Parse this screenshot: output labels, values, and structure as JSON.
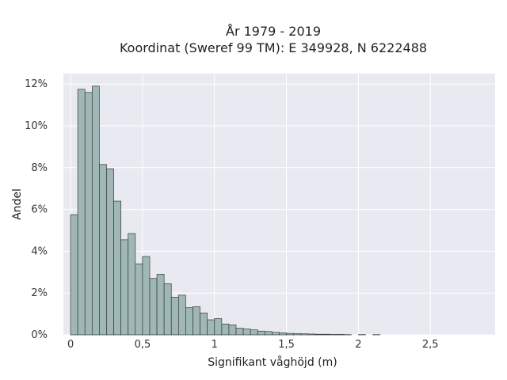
{
  "chart_data": {
    "type": "bar",
    "title_line1": "År 1979 - 2019",
    "title_line2": "Koordinat (Sweref 99 TM): E 349928, N 6222488",
    "xlabel": "Signifikant våghöjd (m)",
    "ylabel": "Andel",
    "xlim": [
      -0.05,
      2.95
    ],
    "ylim": [
      0,
      12.5
    ],
    "x_ticks": [
      {
        "value": 0,
        "label": "0"
      },
      {
        "value": 0.5,
        "label": "0,5"
      },
      {
        "value": 1,
        "label": "1"
      },
      {
        "value": 1.5,
        "label": "1,5"
      },
      {
        "value": 2,
        "label": "2"
      },
      {
        "value": 2.5,
        "label": "2,5"
      }
    ],
    "y_ticks": [
      {
        "value": 0,
        "label": "0%"
      },
      {
        "value": 2,
        "label": "2%"
      },
      {
        "value": 4,
        "label": "4%"
      },
      {
        "value": 6,
        "label": "6%"
      },
      {
        "value": 8,
        "label": "8%"
      },
      {
        "value": 10,
        "label": "10%"
      },
      {
        "value": 12,
        "label": "12%"
      }
    ],
    "bin_width": 0.05,
    "bin_start": 0.0,
    "values": [
      5.75,
      11.75,
      11.6,
      11.9,
      8.15,
      7.95,
      6.4,
      4.55,
      4.85,
      3.4,
      3.75,
      2.7,
      2.9,
      2.45,
      1.8,
      1.9,
      1.3,
      1.35,
      1.05,
      0.72,
      0.78,
      0.52,
      0.48,
      0.32,
      0.28,
      0.24,
      0.18,
      0.16,
      0.12,
      0.1,
      0.07,
      0.06,
      0.05,
      0.04,
      0.03,
      0.03,
      0.02,
      0.02,
      0.01,
      0.0,
      0.01,
      0.0,
      0.01,
      0.0,
      0.0,
      0.0,
      0.0,
      0.0,
      0.0,
      0.0,
      0.0,
      0.0,
      0.0,
      0.0,
      0.0,
      0.0,
      0.0,
      0.0
    ],
    "grid": true,
    "colors": {
      "bar_fill": "#9fb8b5",
      "bar_stroke": "#3a3a3a",
      "plot_bg": "#e9e9f1",
      "grid": "#ffffff"
    }
  }
}
